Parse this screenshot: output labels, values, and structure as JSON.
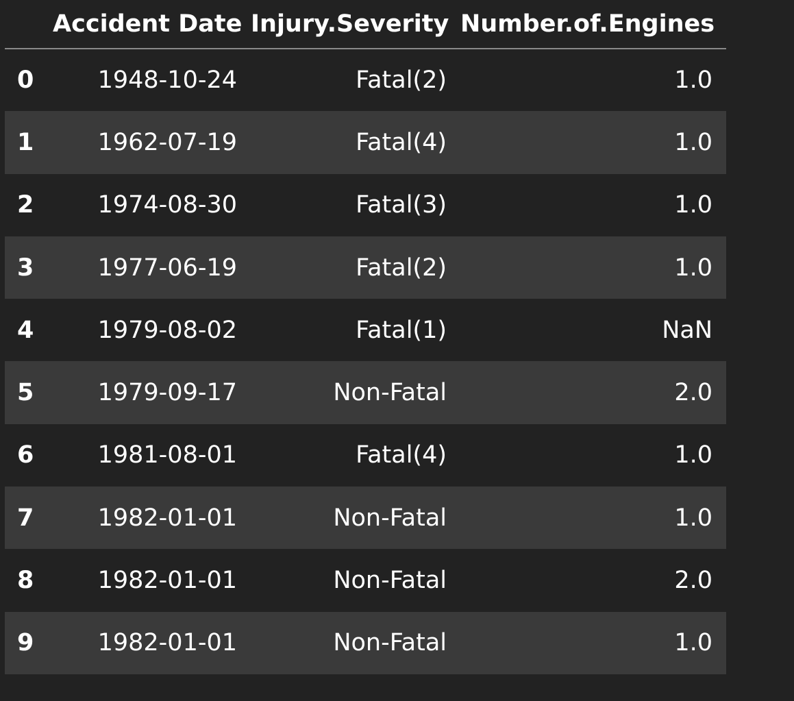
{
  "table": {
    "columns": [
      "Accident Date",
      "Injury.Severity",
      "Number.of.Engines"
    ],
    "rows": [
      {
        "index": "0",
        "accident_date": "1948-10-24",
        "injury_severity": "Fatal(2)",
        "number_of_engines": "1.0"
      },
      {
        "index": "1",
        "accident_date": "1962-07-19",
        "injury_severity": "Fatal(4)",
        "number_of_engines": "1.0"
      },
      {
        "index": "2",
        "accident_date": "1974-08-30",
        "injury_severity": "Fatal(3)",
        "number_of_engines": "1.0"
      },
      {
        "index": "3",
        "accident_date": "1977-06-19",
        "injury_severity": "Fatal(2)",
        "number_of_engines": "1.0"
      },
      {
        "index": "4",
        "accident_date": "1979-08-02",
        "injury_severity": "Fatal(1)",
        "number_of_engines": "NaN"
      },
      {
        "index": "5",
        "accident_date": "1979-09-17",
        "injury_severity": "Non-Fatal",
        "number_of_engines": "2.0"
      },
      {
        "index": "6",
        "accident_date": "1981-08-01",
        "injury_severity": "Fatal(4)",
        "number_of_engines": "1.0"
      },
      {
        "index": "7",
        "accident_date": "1982-01-01",
        "injury_severity": "Non-Fatal",
        "number_of_engines": "1.0"
      },
      {
        "index": "8",
        "accident_date": "1982-01-01",
        "injury_severity": "Non-Fatal",
        "number_of_engines": "2.0"
      },
      {
        "index": "9",
        "accident_date": "1982-01-01",
        "injury_severity": "Non-Fatal",
        "number_of_engines": "1.0"
      }
    ]
  },
  "colors": {
    "background": "#222222",
    "striped_row": "#3a3a3a",
    "text": "#ffffff",
    "header_rule": "#8a8a8a"
  }
}
